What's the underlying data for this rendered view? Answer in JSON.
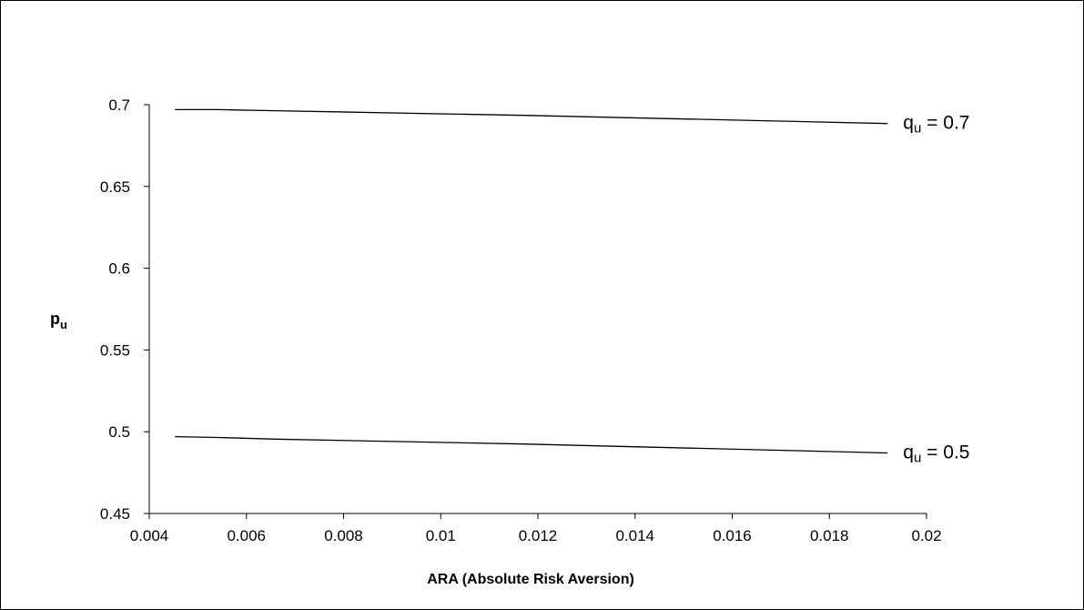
{
  "chart_data": {
    "type": "line",
    "xlabel": "ARA (Absolute Risk Aversion)",
    "ylabel": {
      "main": "p",
      "sub": "u"
    },
    "xlim": [
      0.004,
      0.02
    ],
    "ylim": [
      0.45,
      0.7
    ],
    "x_ticks": [
      "0.004",
      "0.006",
      "0.008",
      "0.01",
      "0.012",
      "0.014",
      "0.016",
      "0.018",
      "0.02"
    ],
    "y_ticks": [
      "0.45",
      "0.5",
      "0.55",
      "0.6",
      "0.65",
      "0.7"
    ],
    "x_tick_values": [
      0.004,
      0.006,
      0.008,
      0.01,
      0.012,
      0.014,
      0.016,
      0.018,
      0.02
    ],
    "y_tick_values": [
      0.45,
      0.5,
      0.55,
      0.6,
      0.65,
      0.7
    ],
    "grid": false,
    "legend": "none",
    "series": [
      {
        "label": {
          "main": "q",
          "sub": "u",
          "rest": " = 0.7"
        },
        "x": [
          0.00453,
          0.0054,
          0.0066,
          0.0117,
          0.0192
        ],
        "y": [
          0.697,
          0.697,
          0.6963,
          0.6935,
          0.6885
        ]
      },
      {
        "label": {
          "main": "q",
          "sub": "u",
          "rest": " = 0.5"
        },
        "x": [
          0.00453,
          0.0054,
          0.0066,
          0.0117,
          0.0192
        ],
        "y": [
          0.497,
          0.4965,
          0.4955,
          0.4925,
          0.487
        ]
      }
    ],
    "line_color": "#000000"
  }
}
